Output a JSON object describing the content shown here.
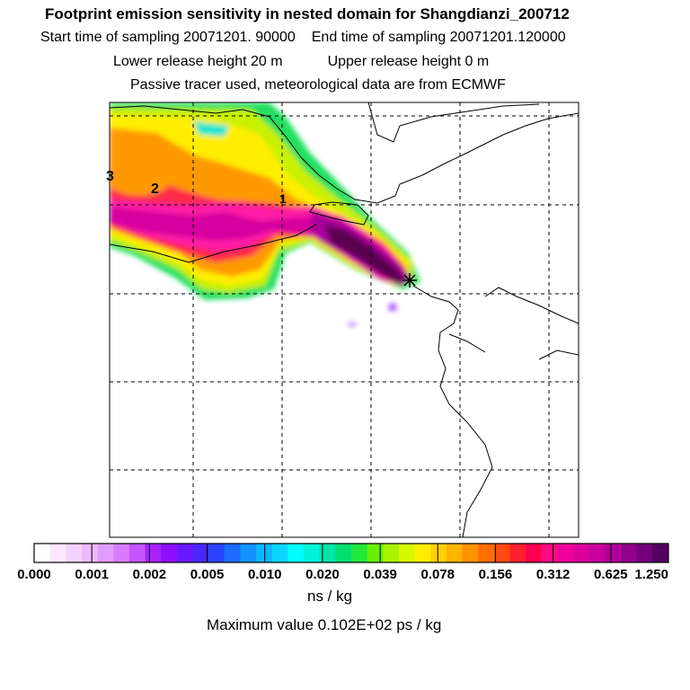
{
  "header": {
    "title": "Footprint emission sensitivity in nested domain for Shangdianzi_200712",
    "start_label": "Start time of sampling 20071201. 90000",
    "end_label": "End time of sampling 20071201.120000",
    "lower_label": "Lower release height   20 m",
    "upper_label": "Upper release height    0 m",
    "tracer_info": "Passive tracer used, meteorological data are from ECMWF"
  },
  "map": {
    "contour_labels": [
      "3",
      "2",
      "1"
    ],
    "field_colors": {
      "green": "#22e060",
      "yellow_green": "#c8f000",
      "yellow": "#ffee00",
      "orange": "#ff9900",
      "red": "#ff2a4a",
      "pink": "#ff1aa6",
      "magenta": "#d6009e",
      "purple": "#a8009a",
      "dark": "#5a0050",
      "cyan": "#1ee6d0",
      "blue": "#33aaff",
      "violet": "#b066ff"
    }
  },
  "colorbar": {
    "colors": [
      "#ffffff",
      "#fbe8ff",
      "#f4d2ff",
      "#ecbaff",
      "#e09cff",
      "#d77cff",
      "#c455ff",
      "#a822ff",
      "#8c10ff",
      "#6a18ff",
      "#4a28ff",
      "#2a44ff",
      "#1c6cff",
      "#1094ff",
      "#0cb6ff",
      "#0ad6ff",
      "#00ffff",
      "#00f2d8",
      "#00e6a8",
      "#00e072",
      "#22e83c",
      "#66f000",
      "#a8f400",
      "#d8f800",
      "#ffee00",
      "#ffd200",
      "#ffb400",
      "#ff9200",
      "#ff6e00",
      "#ff4a10",
      "#ff2030",
      "#ff0050",
      "#ff0a80",
      "#f0009a",
      "#dc009a",
      "#c8009c",
      "#b0009a",
      "#92008c",
      "#72007a",
      "#520060"
    ],
    "labels": [
      "0.000",
      "0.001",
      "0.002",
      "0.005",
      "0.010",
      "0.020",
      "0.039",
      "0.078",
      "0.156",
      "0.312",
      "0.625",
      "1.250"
    ],
    "units": "ns / kg",
    "max_value": "Maximum value  0.102E+02 ps / kg"
  }
}
